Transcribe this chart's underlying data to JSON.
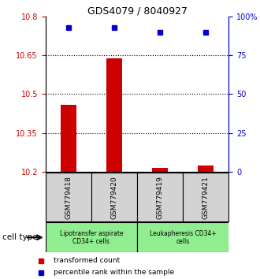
{
  "title": "GDS4079 / 8040927",
  "samples": [
    "GSM779418",
    "GSM779420",
    "GSM779419",
    "GSM779421"
  ],
  "red_values": [
    10.46,
    10.64,
    10.215,
    10.225
  ],
  "blue_values_pct": [
    93,
    93,
    90,
    90
  ],
  "ylim_left": [
    10.2,
    10.8
  ],
  "ylim_right": [
    0,
    100
  ],
  "yticks_left": [
    10.2,
    10.35,
    10.5,
    10.65,
    10.8
  ],
  "ytick_labels_left": [
    "10.2",
    "10.35",
    "10.5",
    "10.65",
    "10.8"
  ],
  "yticks_right": [
    0,
    25,
    50,
    75,
    100
  ],
  "ytick_labels_right": [
    "0",
    "25",
    "50",
    "75",
    "100%"
  ],
  "hlines": [
    10.35,
    10.5,
    10.65
  ],
  "group1_label": "Lipotransfer aspirate\nCD34+ cells",
  "group2_label": "Leukapheresis CD34+\ncells",
  "group1_bg": "#90EE90",
  "group2_bg": "#90EE90",
  "sample_bg": "#d3d3d3",
  "cell_type_label": "cell type",
  "legend_red": "transformed count",
  "legend_blue": "percentile rank within the sample",
  "red_color": "#cc0000",
  "blue_color": "#0000cc",
  "base_value": 10.2,
  "bar_width": 0.35
}
